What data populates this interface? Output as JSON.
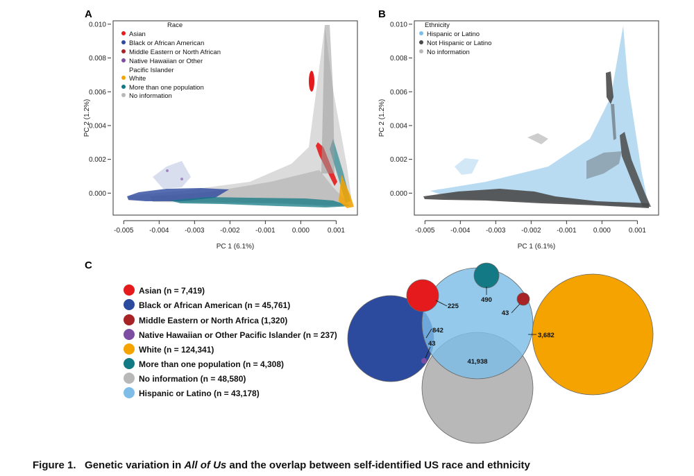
{
  "panels": {
    "a": "A",
    "b": "B",
    "c": "C"
  },
  "caption": {
    "label": "Figure 1.",
    "pre": "Genetic variation in ",
    "italic": "All of Us",
    "post": " and the overlap between self-identified US race and ethnicity"
  },
  "chart_data": [
    {
      "id": "A",
      "type": "scatter",
      "title": "",
      "xlabel": "PC 1 (6.1%)",
      "ylabel": "PC 2 (1.2%)",
      "xlim": [
        -0.0053,
        0.0016
      ],
      "ylim": [
        -0.0013,
        0.0102
      ],
      "xticks": [
        "-0.005",
        "-0.004",
        "-0.003",
        "-0.002",
        "-0.001",
        "0.000",
        "0.001"
      ],
      "yticks": [
        "0.000",
        "0.002",
        "0.004",
        "0.006",
        "0.008",
        "0.010"
      ],
      "legend_title": "Race",
      "legend": [
        {
          "label": "Asian",
          "color": "#e41a1c"
        },
        {
          "label": "Black or African American",
          "color": "#2c4a9e"
        },
        {
          "label": "Middle Eastern or North African",
          "color": "#a82325"
        },
        {
          "label": "Native Hawaiian or Other",
          "color": "#7e4ea3"
        },
        {
          "label": "Pacific Islander",
          "color": ""
        },
        {
          "label": "White",
          "color": "#f5a300"
        },
        {
          "label": "More than one population",
          "color": "#137a85"
        },
        {
          "label": "No information",
          "color": "#b8b8b8"
        }
      ]
    },
    {
      "id": "B",
      "type": "scatter",
      "title": "",
      "xlabel": "PC 1 (6.1%)",
      "ylabel": "PC 2 (1.2%)",
      "xlim": [
        -0.0053,
        0.0016
      ],
      "ylim": [
        -0.0013,
        0.0102
      ],
      "xticks": [
        "-0.005",
        "-0.004",
        "-0.003",
        "-0.002",
        "-0.001",
        "0.000",
        "0.001"
      ],
      "yticks": [
        "0.000",
        "0.002",
        "0.004",
        "0.006",
        "0.008",
        "0.010"
      ],
      "legend_title": "Ethnicity",
      "legend": [
        {
          "label": "Hispanic or Latino",
          "color": "#7dbde8"
        },
        {
          "label": "Not Hispanic or Latino",
          "color": "#4a4a4a"
        },
        {
          "label": "No information",
          "color": "#b8b8b8"
        }
      ]
    },
    {
      "id": "C",
      "type": "venn",
      "legend": [
        {
          "label": "Asian (n = 7,419)",
          "color": "#e41a1c"
        },
        {
          "label": "Black or African American (n = 45,761)",
          "color": "#2c4a9e"
        },
        {
          "label": "Middle Eastern or North Africa (1,320)",
          "color": "#a82325"
        },
        {
          "label": "Native Hawaiian or Other Pacific Islander (n = 237)",
          "color": "#7e4ea3"
        },
        {
          "label": "White (n = 124,341)",
          "color": "#f5a300"
        },
        {
          "label": "More than one population (n = 4,308)",
          "color": "#137a85"
        },
        {
          "label": "No information (n = 48,580)",
          "color": "#b8b8b8"
        },
        {
          "label": "Hispanic or Latino (n = 43,178)",
          "color": "#7dbde8"
        }
      ],
      "sets": [
        {
          "name": "Black or African American",
          "n": 45761,
          "color": "#2c4a9e"
        },
        {
          "name": "White",
          "n": 124341,
          "color": "#f5a300"
        },
        {
          "name": "No information",
          "n": 48580,
          "color": "#b8b8b8"
        },
        {
          "name": "Hispanic or Latino",
          "n": 43178,
          "color": "#7dbde8"
        },
        {
          "name": "Asian",
          "n": 7419,
          "color": "#e41a1c"
        },
        {
          "name": "More than one population",
          "n": 4308,
          "color": "#137a85"
        },
        {
          "name": "Middle Eastern or North Africa",
          "n": 1320,
          "color": "#a82325"
        },
        {
          "name": "Native Hawaiian or Other Pacific Islander",
          "n": 237,
          "color": "#7e4ea3"
        }
      ],
      "overlaps": [
        {
          "label": "225",
          "with": "Asian"
        },
        {
          "label": "490",
          "with": "More than one population"
        },
        {
          "label": "43",
          "with": "Middle Eastern or North Africa"
        },
        {
          "label": "3,682",
          "with": "White"
        },
        {
          "label": "842",
          "with": "Black or African American"
        },
        {
          "label": "43",
          "with": "Native Hawaiian or Other Pacific Islander"
        },
        {
          "label": "41,938",
          "with": "No information"
        }
      ]
    }
  ]
}
